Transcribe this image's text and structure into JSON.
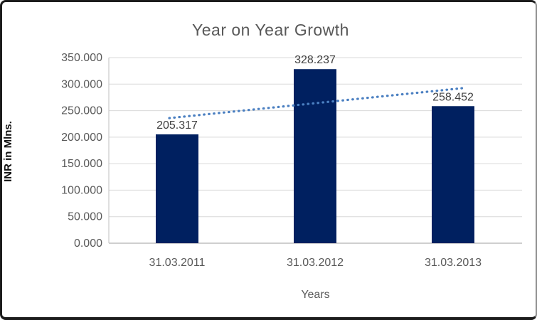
{
  "chart_data": {
    "type": "bar",
    "title": "Year on Year Growth",
    "xlabel": "Years",
    "ylabel": "INR in Mlns.",
    "categories": [
      "31.03.2011",
      "31.03.2012",
      "31.03.2013"
    ],
    "values": [
      205.317,
      328.237,
      258.452
    ],
    "value_labels": [
      "205.317",
      "328.237",
      "258.452"
    ],
    "ylim": [
      0,
      350
    ],
    "y_tick_step": 50,
    "y_tick_labels": [
      "0.000",
      "50.000",
      "100.000",
      "150.000",
      "200.000",
      "250.000",
      "300.000",
      "350.000"
    ],
    "grid": "horizontal-only",
    "legend_position": "none",
    "trendline": {
      "type": "linear",
      "style": "dotted",
      "fit_values": [
        237.432,
        264.002,
        290.572
      ]
    },
    "colors": {
      "bar": "#002060",
      "trendline": "#4a7fc1",
      "title": "#595959",
      "tick_label": "#595959",
      "data_label": "#3f3f3f",
      "gridline": "#d9d9d9",
      "axis_line": "#bfbfbf"
    }
  }
}
